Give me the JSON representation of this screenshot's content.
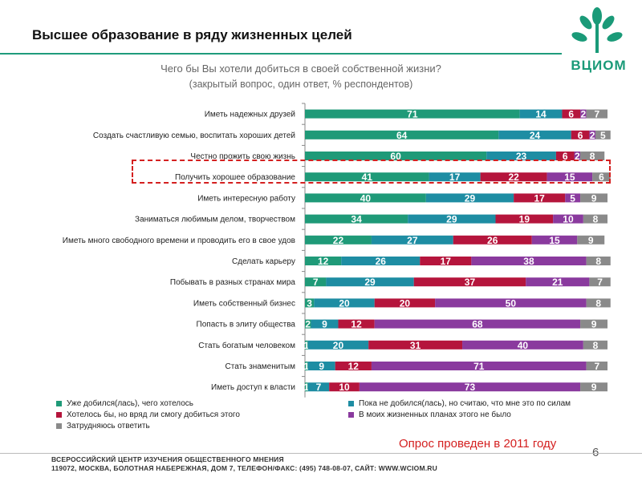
{
  "slide": {
    "title": "Высшее образование в ряду жизненных целей",
    "question": "Чего бы Вы хотели добиться в своей собственной жизни?",
    "question_note": "(закрытый вопрос, один ответ, % респондентов)",
    "logo_text": "ВЦИОМ",
    "survey_note": "Опрос проведен в 2011 году",
    "slide_number": "6",
    "footer_line1": "ВСЕРОССИЙСКИЙ ЦЕНТР ИЗУЧЕНИЯ ОБЩЕСТВЕННОГО МНЕНИЯ",
    "footer_line2": "119072, МОСКВА, БОЛОТНАЯ НАБЕРЕЖНАЯ, ДОМ 7, ТЕЛЕФОН/ФАКС: (495) 748-08-07, САЙТ: WWW.WCIOM.RU",
    "highlighted_category": "Получить хорошее образование"
  },
  "colors": {
    "accent": "#1f9c7c",
    "highlight": "#d42020"
  },
  "chart_data": {
    "type": "bar",
    "orientation": "horizontal",
    "stacked": true,
    "xlim": [
      0,
      100
    ],
    "categories": [
      "Иметь надежных друзей",
      "Создать счастливую семью, воспитать хороших детей",
      "Честно прожить свою жизнь",
      "Получить хорошее образование",
      "Иметь интересную работу",
      "Заниматься любимым делом, творчеством",
      "Иметь много свободного времени и проводить его в свое удов",
      "Сделать карьеру",
      "Побывать в разных странах мира",
      "Иметь собственный бизнес",
      "Попасть в элиту общества",
      "Стать богатым человеком",
      "Стать знаменитым",
      "Иметь доступ к власти"
    ],
    "series": [
      {
        "name": "Уже добился(лась), чего хотелось",
        "color": "#1f9a78",
        "values": [
          71,
          64,
          60,
          41,
          40,
          34,
          22,
          12,
          7,
          3,
          2,
          1,
          1,
          1
        ]
      },
      {
        "name": "Пока не добился(лась), но считаю, что мне это по силам",
        "color": "#1e8da3",
        "values": [
          14,
          24,
          23,
          17,
          29,
          29,
          27,
          26,
          29,
          20,
          9,
          20,
          9,
          7
        ]
      },
      {
        "name": "Хотелось бы, но вряд ли смогу добиться этого",
        "color": "#b5153c",
        "values": [
          6,
          6,
          6,
          22,
          17,
          19,
          26,
          17,
          37,
          20,
          12,
          31,
          12,
          10
        ]
      },
      {
        "name": "В моих жизненных планах этого не было",
        "color": "#8a3a9e",
        "values": [
          2,
          2,
          2,
          15,
          5,
          10,
          15,
          38,
          21,
          50,
          68,
          40,
          71,
          73
        ]
      },
      {
        "name": "Затрудняюсь ответить",
        "color": "#8a8a8a",
        "values": [
          7,
          5,
          8,
          6,
          9,
          8,
          9,
          8,
          7,
          8,
          9,
          8,
          7,
          9
        ]
      }
    ]
  }
}
